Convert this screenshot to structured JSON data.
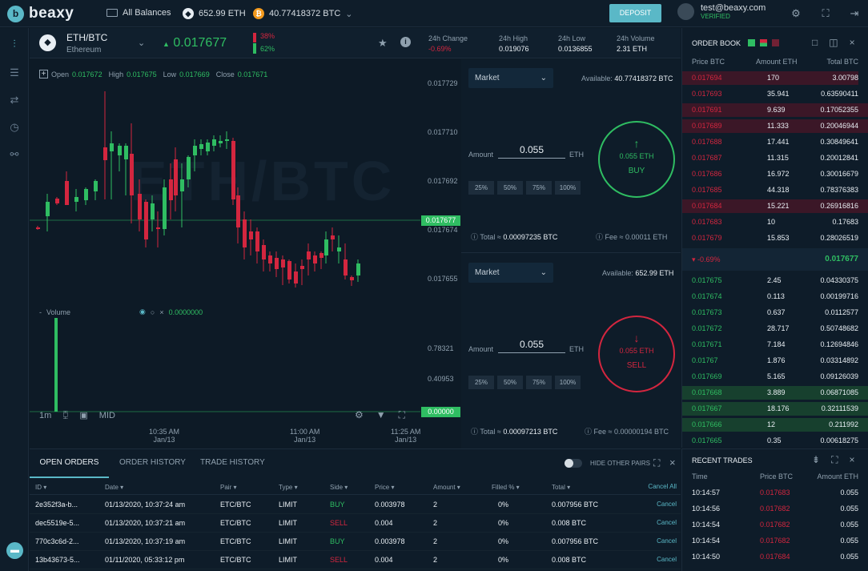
{
  "topbar": {
    "logo_text": "beaxy",
    "all_balances": "All Balances",
    "eth_balance": "652.99 ETH",
    "btc_balance": "40.77418372 BTC",
    "deposit_label": "DEPOSIT",
    "user_email": "test@beaxy.com",
    "user_status": "VERIFIED"
  },
  "pair": {
    "name": "ETH/BTC",
    "subname": "Ethereum",
    "price": "0.017677",
    "buy_pct": "38%",
    "sell_pct": "62%",
    "change_label": "24h Change",
    "change_value": "-0.69%",
    "high_label": "24h High",
    "high_value": "0.019076",
    "low_label": "24h Low",
    "low_value": "0.0136855",
    "volume_label": "24h Volume",
    "volume_value": "2.31 ETH"
  },
  "chart": {
    "ohlc": {
      "open_label": "Open",
      "open": "0.017672",
      "high_label": "High",
      "high": "0.017675",
      "low_label": "Low",
      "low": "0.017669",
      "close_label": "Close",
      "close": "0.017671"
    },
    "watermark": "ETH/BTC",
    "y_ticks": [
      "0.017729",
      "0.017710",
      "0.017692",
      "0.017674",
      "0.017655"
    ],
    "current_price": "0.017677",
    "volume_label": "Volume",
    "volume_value": "0.0000000",
    "vol_ticks": [
      "0.78321",
      "0.40953"
    ],
    "vol_current": "0.00000",
    "range_1m": "1m",
    "mid_label": "MID",
    "x_ticks": [
      {
        "time": "10:35 AM",
        "date": "Jan/13"
      },
      {
        "time": "11:00 AM",
        "date": "Jan/13"
      },
      {
        "time": "11:25 AM",
        "date": "Jan/13"
      }
    ]
  },
  "buy": {
    "type": "Market",
    "available": "Available:",
    "available_value": "40.77418372 BTC",
    "amount_label": "Amount",
    "amount": "0.055",
    "unit": "ETH",
    "pcts": [
      "25%",
      "50%",
      "75%",
      "100%"
    ],
    "total": "Total ≈",
    "total_value": "0.00097235 BTC",
    "fee": "Fee ≈",
    "fee_value": "0.00011 ETH",
    "btn_amount": "0.055 ETH",
    "btn_label": "BUY"
  },
  "sell": {
    "type": "Market",
    "available": "Available:",
    "available_value": "652.99 ETH",
    "amount_label": "Amount",
    "amount": "0.055",
    "unit": "ETH",
    "pcts": [
      "25%",
      "50%",
      "75%",
      "100%"
    ],
    "total": "Total ≈",
    "total_value": "0.00097213 BTC",
    "fee": "Fee ≈",
    "fee_value": "0.00000194 BTC",
    "btn_amount": "0.055 ETH",
    "btn_label": "SELL"
  },
  "orderbook": {
    "title": "ORDER BOOK",
    "headers": [
      "Price BTC",
      "Amount ETH",
      "Total BTC"
    ],
    "asks": [
      [
        "0.017694",
        "170",
        "3.00798"
      ],
      [
        "0.017693",
        "35.941",
        "0.63590411"
      ],
      [
        "0.017691",
        "9.639",
        "0.17052355"
      ],
      [
        "0.017689",
        "11.333",
        "0.20046944"
      ],
      [
        "0.017688",
        "17.441",
        "0.30849641"
      ],
      [
        "0.017687",
        "11.315",
        "0.20012841"
      ],
      [
        "0.017686",
        "16.972",
        "0.30016679"
      ],
      [
        "0.017685",
        "44.318",
        "0.78376383"
      ],
      [
        "0.017684",
        "15.221",
        "0.26916816"
      ],
      [
        "0.017683",
        "10",
        "0.17683"
      ],
      [
        "0.017679",
        "15.853",
        "0.28026519"
      ]
    ],
    "spread_change": "-0.69%",
    "spread_price": "0.017677",
    "bids": [
      [
        "0.017675",
        "2.45",
        "0.04330375"
      ],
      [
        "0.017674",
        "0.113",
        "0.00199716"
      ],
      [
        "0.017673",
        "0.637",
        "0.0112577"
      ],
      [
        "0.017672",
        "28.717",
        "0.50748682"
      ],
      [
        "0.017671",
        "7.184",
        "0.12694846"
      ],
      [
        "0.01767",
        "1.876",
        "0.03314892"
      ],
      [
        "0.017669",
        "5.165",
        "0.09126039"
      ],
      [
        "0.017668",
        "3.889",
        "0.06871085"
      ],
      [
        "0.017667",
        "18.176",
        "0.32111539"
      ],
      [
        "0.017666",
        "12",
        "0.211992"
      ],
      [
        "0.017665",
        "0.35",
        "0.00618275"
      ]
    ]
  },
  "recent": {
    "title": "RECENT TRADES",
    "headers": [
      "Time",
      "Price BTC",
      "Amount ETH"
    ],
    "rows": [
      [
        "10:14:57",
        "0.017683",
        "0.055"
      ],
      [
        "10:14:56",
        "0.017682",
        "0.055"
      ],
      [
        "10:14:54",
        "0.017682",
        "0.055"
      ],
      [
        "10:14:54",
        "0.017682",
        "0.055"
      ],
      [
        "10:14:50",
        "0.017684",
        "0.055"
      ]
    ]
  },
  "orders": {
    "tabs": [
      "OPEN ORDERS",
      "ORDER HISTORY",
      "TRADE HISTORY"
    ],
    "hide_pairs": "HIDE OTHER PAIRS",
    "headers": [
      "ID",
      "Date",
      "Pair",
      "Type",
      "Side",
      "Price",
      "Amount",
      "Filled %",
      "Total"
    ],
    "cancel_all": "Cancel All",
    "cancel": "Cancel",
    "rows": [
      [
        "2e352f3a-b...",
        "01/13/2020, 10:37:24 am",
        "ETC/BTC",
        "LIMIT",
        "BUY",
        "0.003978",
        "2",
        "0%",
        "0.007956 BTC"
      ],
      [
        "dec5519e-5...",
        "01/13/2020, 10:37:21 am",
        "ETC/BTC",
        "LIMIT",
        "SELL",
        "0.004",
        "2",
        "0%",
        "0.008 BTC"
      ],
      [
        "770c3c6d-2...",
        "01/13/2020, 10:37:19 am",
        "ETC/BTC",
        "LIMIT",
        "BUY",
        "0.003978",
        "2",
        "0%",
        "0.007956 BTC"
      ],
      [
        "13b43673-5...",
        "01/11/2020, 05:33:12 pm",
        "ETC/BTC",
        "LIMIT",
        "SELL",
        "0.004",
        "2",
        "0%",
        "0.008 BTC"
      ]
    ]
  },
  "colors": {
    "accent": "#5ab8c7",
    "up": "#2fbd62",
    "down": "#d3263f",
    "bg": "#0d1a26"
  }
}
